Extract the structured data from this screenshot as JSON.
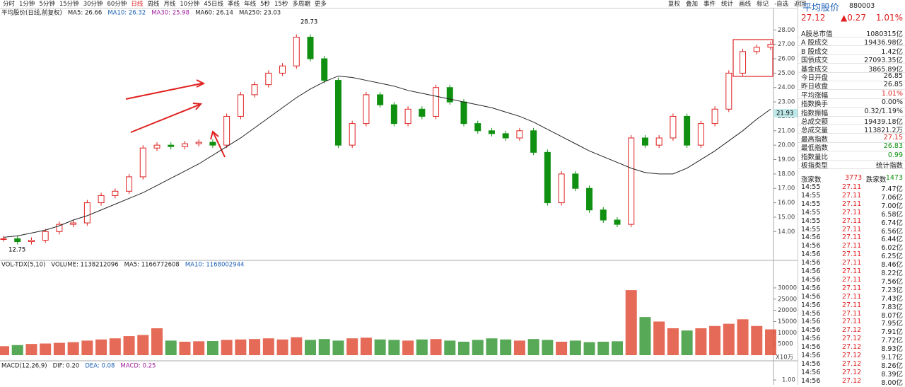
{
  "toolbar": {
    "periods": [
      "分时",
      "1分钟",
      "5分钟",
      "15分钟",
      "30分钟",
      "60分钟",
      "日线",
      "周线",
      "月线",
      "10分钟",
      "45日线",
      "季线",
      "年线",
      "5秒",
      "15秒",
      "多周期",
      "更多"
    ],
    "tools": [
      "复权",
      "叠加",
      "事件",
      "统计",
      "画线",
      "标记",
      "-自选",
      "返回"
    ]
  },
  "quote": {
    "name": "平均股价",
    "code": "880003",
    "price": "27.12",
    "change": "▲0.27",
    "pct": "1.01%",
    "rows": [
      {
        "label": "A股总市值",
        "value": "1080315亿"
      },
      {
        "label": "A 股成交",
        "value": "19436.98亿"
      },
      {
        "label": "B 股成交",
        "value": "1.42亿"
      },
      {
        "label": "国债成交",
        "value": "27093.35亿"
      },
      {
        "label": "基金成交",
        "value": "3865.89亿"
      },
      {
        "label": "今日开盘",
        "value": "26.85"
      },
      {
        "label": "昨日收盘",
        "value": "26.85"
      },
      {
        "label": "平均涨幅",
        "value": "1.01%",
        "color": "#e02020"
      },
      {
        "label": "指数换手",
        "value": "0.00%"
      },
      {
        "label": "指数振幅",
        "value": "0.32/1.19%"
      },
      {
        "label": "总成交额",
        "value": "19439.18亿"
      },
      {
        "label": "总成交量",
        "value": "113821.2万"
      },
      {
        "label": "最高指数",
        "value": "27.15",
        "color": "#e02020"
      },
      {
        "label": "最低指数",
        "value": "26.83",
        "color": "#109010"
      },
      {
        "label": "指数量比",
        "value": "0.99",
        "color": "#109010"
      },
      {
        "label": "板指类型",
        "value": "统计指数"
      }
    ],
    "breadth": {
      "up_label": "涨家数",
      "up": "3773",
      "down_label": "跌家数",
      "down": "1473"
    },
    "trades": [
      [
        "14:55",
        "27.11",
        "7.47亿"
      ],
      [
        "14:55",
        "27.11",
        "7.06亿"
      ],
      [
        "14:55",
        "27.11",
        "7.00亿"
      ],
      [
        "14:55",
        "27.11",
        "6.58亿"
      ],
      [
        "14:55",
        "27.11",
        "6.74亿"
      ],
      [
        "14:55",
        "27.11",
        "6.56亿"
      ],
      [
        "14:56",
        "27.11",
        "6.44亿"
      ],
      [
        "14:56",
        "27.11",
        "6.02亿"
      ],
      [
        "14:56",
        "27.11",
        "6.25亿"
      ],
      [
        "14:56",
        "27.11",
        "8.46亿"
      ],
      [
        "14:56",
        "27.11",
        "8.22亿"
      ],
      [
        "14:56",
        "27.11",
        "7.56亿"
      ],
      [
        "14:56",
        "27.11",
        "7.23亿"
      ],
      [
        "14:56",
        "27.11",
        "7.43亿"
      ],
      [
        "14:56",
        "27.11",
        "7.83亿"
      ],
      [
        "14:56",
        "27.11",
        "8.07亿"
      ],
      [
        "14:56",
        "27.11",
        "7.95亿"
      ],
      [
        "14:56",
        "27.12",
        "7.91亿"
      ],
      [
        "14:56",
        "27.12",
        "7.72亿"
      ],
      [
        "14:56",
        "27.12",
        "8.93亿"
      ],
      [
        "14:56",
        "27.12",
        "9.17亿"
      ],
      [
        "14:56",
        "27.12",
        "8.26亿"
      ],
      [
        "14:56",
        "27.12",
        "8.39亿"
      ],
      [
        "14:56",
        "27.12",
        "8.00亿"
      ]
    ]
  },
  "chart_data": [
    {
      "type": "candle",
      "legend": [
        "平均股价(日线,前复权)",
        "MA5: 26.66",
        "MA10: 26.32",
        "MA30: 25.98",
        "MA60: 26.14",
        "MA250: 23.03"
      ],
      "annotations": [
        "28.73",
        "12.75",
        "21.93"
      ],
      "categories": [
        null,
        null,
        null,
        null,
        null,
        null,
        null,
        null,
        null,
        null,
        null,
        null,
        null,
        null,
        null,
        null,
        null,
        null,
        null,
        null,
        null,
        null,
        null,
        null,
        null,
        null,
        null,
        null,
        null,
        null,
        null,
        null,
        null,
        null,
        null,
        null,
        null,
        null,
        null,
        null,
        null,
        null,
        null,
        null,
        null,
        null,
        null,
        null,
        null,
        null,
        null,
        null,
        null,
        null,
        null,
        null
      ],
      "series": [
        {
          "color": "#e02020",
          "values": [
            13.5,
            13.3,
            13.4,
            14.0,
            14.5,
            14.6,
            16.0,
            16.5,
            16.8,
            17.8,
            19.8,
            20.0,
            19.9,
            20.1,
            20.2,
            20.0,
            22.0,
            23.5,
            24.2,
            25.0,
            25.5,
            27.5,
            26.0,
            24.5,
            20.0,
            21.5,
            23.5,
            22.8,
            21.5,
            22.5,
            22.0,
            24.0,
            23.0,
            21.5,
            21.0,
            20.8,
            20.5,
            21.0,
            19.5,
            16.0,
            18.0,
            17.0,
            15.5,
            14.8,
            14.5,
            20.5,
            20.0,
            20.5,
            22.0,
            20.0,
            21.5,
            22.5,
            25.0,
            26.5,
            26.8,
            27.0
          ]
        },
        {
          "color": "#222222",
          "values": [
            13.6,
            13.7,
            13.9,
            14.1,
            14.4,
            14.8,
            15.1,
            15.5,
            15.9,
            16.3,
            16.7,
            17.2,
            17.7,
            18.2,
            18.7,
            19.3,
            19.9,
            20.5,
            21.2,
            21.9,
            22.6,
            23.3,
            23.9,
            24.4,
            24.8,
            24.7,
            24.5,
            24.3,
            24.1,
            23.8,
            23.6,
            23.4,
            23.2,
            23.0,
            22.8,
            22.6,
            22.3,
            22.0,
            21.6,
            21.1,
            20.6,
            20.1,
            19.6,
            19.2,
            18.8,
            18.4,
            18.1,
            18.0,
            18.0,
            18.4,
            19.0,
            19.6,
            20.3,
            21.0,
            21.8,
            22.5
          ]
        }
      ],
      "ylim": [
        12,
        28.9
      ],
      "yticks": [
        {
          "value": 28,
          "label": "28.00"
        },
        {
          "value": 27,
          "label": "27.00"
        },
        {
          "value": 26,
          "label": "26.00"
        },
        {
          "value": 25,
          "label": "25.00"
        },
        {
          "value": 24,
          "label": "24.00"
        },
        {
          "value": 23,
          "label": "23.00"
        },
        {
          "value": 22,
          "label": "22.00"
        },
        {
          "value": 21,
          "label": "21.00"
        },
        {
          "value": 20,
          "label": "20.00"
        },
        {
          "value": 19,
          "label": "19.00"
        },
        {
          "value": 18,
          "label": "18.00"
        },
        {
          "value": 17,
          "label": "17.00"
        },
        {
          "value": 16,
          "label": "16.00"
        },
        {
          "value": 15,
          "label": "15.00"
        },
        {
          "value": 14,
          "label": "14.00"
        }
      ]
    },
    {
      "type": "bar",
      "legend": [
        "VOL-TDX(5,10)",
        "VOLUME: 1138212096",
        "MA5: 1166772608",
        "MA10: 1168002944"
      ],
      "unit": "X10万",
      "values": [
        4000,
        4500,
        5000,
        5200,
        5500,
        5800,
        6500,
        7000,
        7500,
        8500,
        9000,
        12000,
        6500,
        6000,
        6200,
        6300,
        6800,
        7000,
        7200,
        7500,
        7000,
        8000,
        6800,
        7200,
        6500,
        7500,
        7800,
        7000,
        6800,
        6500,
        7000,
        7200,
        6500,
        6000,
        6800,
        7500,
        7000,
        6500,
        7200,
        6800,
        6000,
        6500,
        5800,
        6000,
        6200,
        29000,
        17000,
        15000,
        12000,
        11000,
        12000,
        13000,
        14000,
        16000,
        13000,
        11500
      ],
      "ylim": [
        0,
        38500
      ],
      "yticks": [
        5000,
        10000,
        15000,
        20000,
        25000,
        30000
      ]
    },
    {
      "type": "macd",
      "legend": [
        "MACD(12,26,9)",
        "DIF: 0.20",
        "DEA: 0.08",
        "MACD: 0.25"
      ],
      "yticks": [
        {
          "value": 1,
          "label": "1.00"
        }
      ]
    }
  ]
}
